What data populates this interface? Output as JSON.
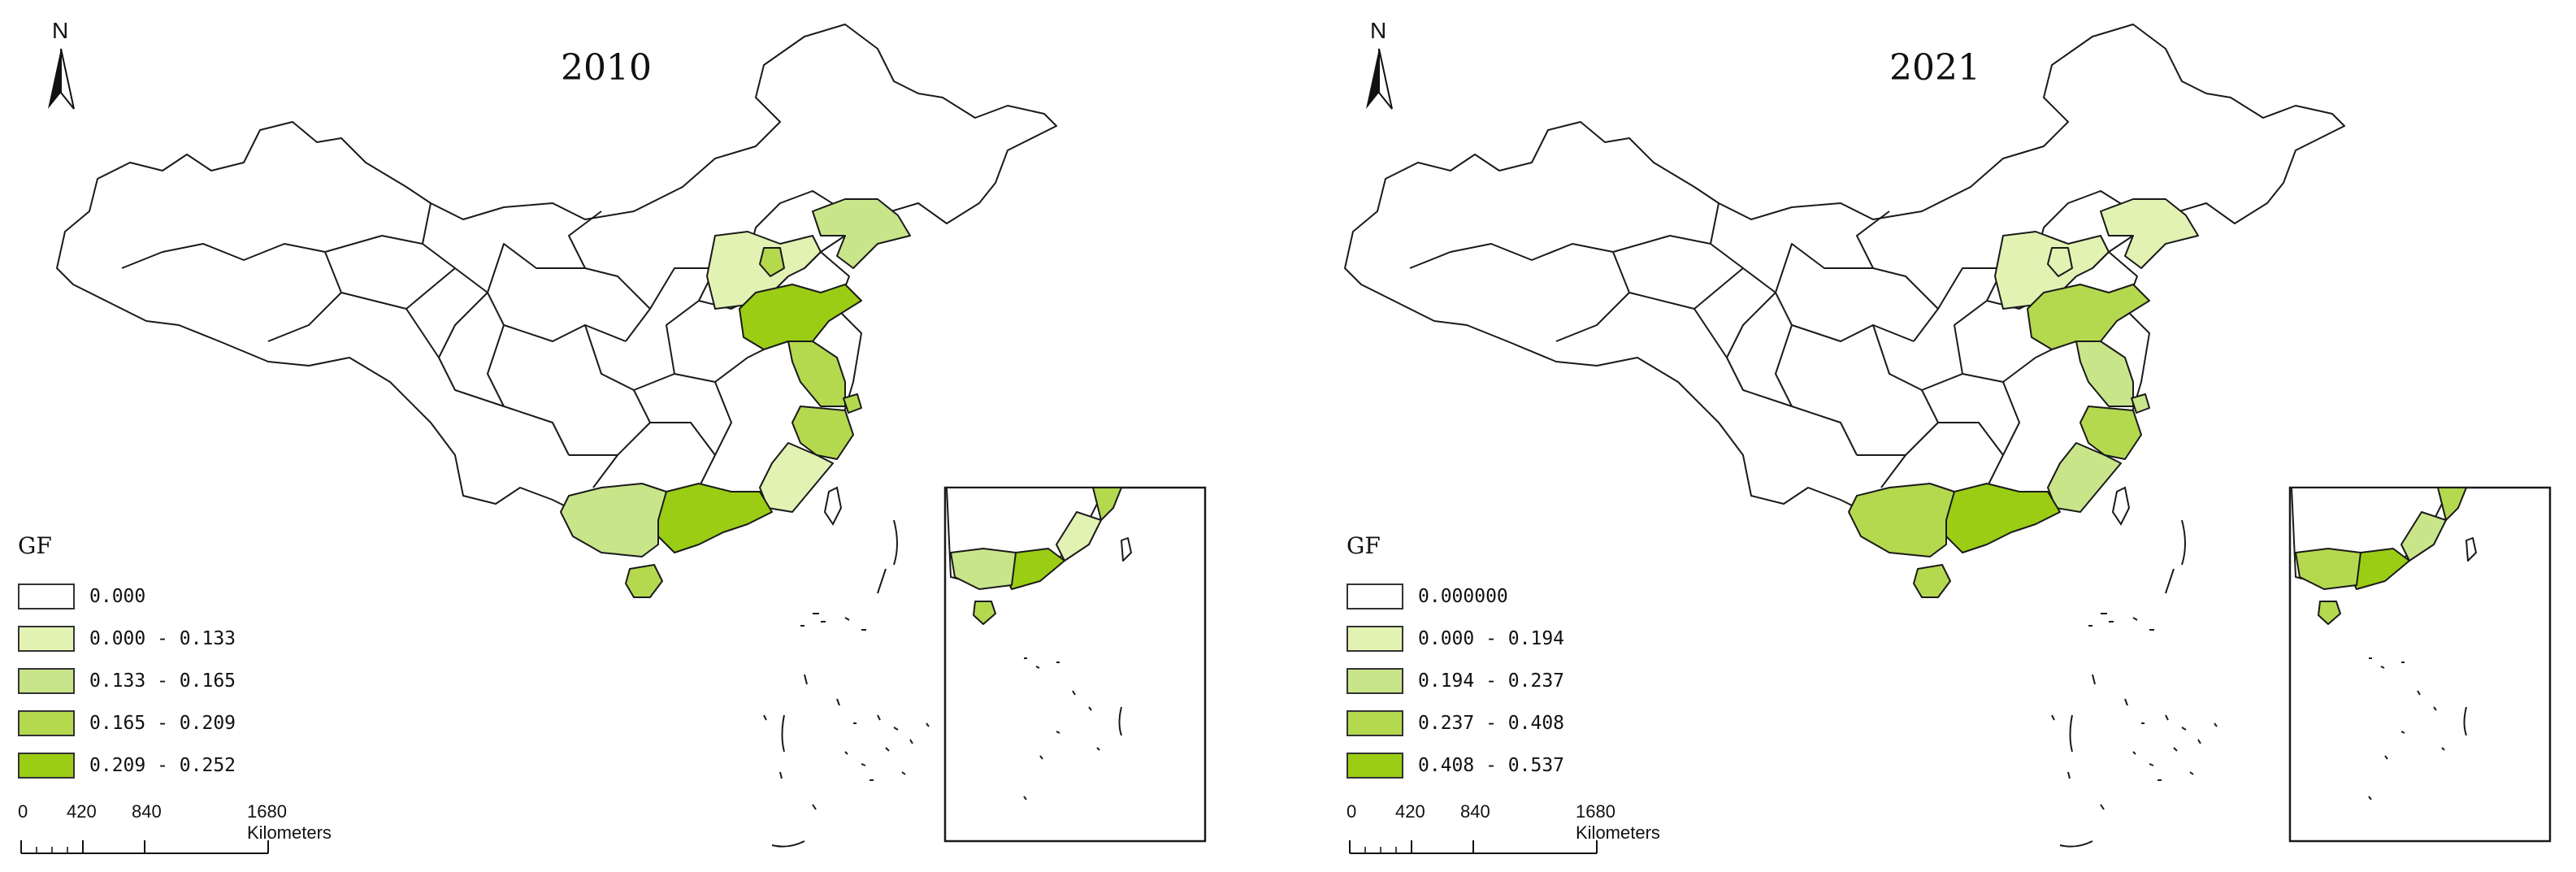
{
  "colors": {
    "class0": "#ffffff",
    "class1": "#e2f2b3",
    "class2": "#c9e58a",
    "class3": "#b4d94f",
    "class4": "#9acd14",
    "outline": "#1a1a1a"
  },
  "north_label": "N",
  "legend_title": "GF",
  "scale": {
    "ticks": [
      "0",
      "420",
      "840",
      "1680 Kilometers"
    ]
  },
  "panels": [
    {
      "year": "2010",
      "legend": [
        {
          "label": "0.000",
          "class": "class0"
        },
        {
          "label": "0.000 - 0.133",
          "class": "class1"
        },
        {
          "label": "0.133 - 0.165",
          "class": "class2"
        },
        {
          "label": "0.165 - 0.209",
          "class": "class3"
        },
        {
          "label": "0.209 - 0.252",
          "class": "class4"
        }
      ],
      "regions": {
        "hebei": "class1",
        "tianjin": "class3",
        "liaoning": "class2",
        "shandong": "class4",
        "jiangsu": "class3",
        "shanghai": "class3",
        "zhejiang": "class3",
        "fujian": "class1",
        "guangdong": "class4",
        "guangxi": "class2",
        "hainan": "class3"
      }
    },
    {
      "year": "2021",
      "legend": [
        {
          "label": "0.000000",
          "class": "class0"
        },
        {
          "label": "0.000 - 0.194",
          "class": "class1"
        },
        {
          "label": "0.194 - 0.237",
          "class": "class2"
        },
        {
          "label": "0.237 - 0.408",
          "class": "class3"
        },
        {
          "label": "0.408 - 0.537",
          "class": "class4"
        }
      ],
      "regions": {
        "hebei": "class1",
        "tianjin": "class1",
        "liaoning": "class1",
        "shandong": "class3",
        "jiangsu": "class2",
        "shanghai": "class2",
        "zhejiang": "class3",
        "fujian": "class2",
        "guangdong": "class4",
        "guangxi": "class3",
        "hainan": "class3"
      }
    }
  ]
}
